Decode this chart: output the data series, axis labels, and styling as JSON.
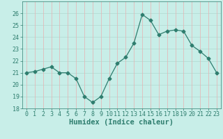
{
  "x": [
    0,
    1,
    2,
    3,
    4,
    5,
    6,
    7,
    8,
    9,
    10,
    11,
    12,
    13,
    14,
    15,
    16,
    17,
    18,
    19,
    20,
    21,
    22,
    23
  ],
  "y": [
    21.0,
    21.1,
    21.3,
    21.5,
    21.0,
    21.0,
    20.5,
    19.0,
    18.5,
    19.0,
    20.5,
    21.8,
    22.3,
    23.5,
    25.9,
    25.4,
    24.2,
    24.5,
    24.6,
    24.5,
    23.3,
    22.8,
    22.2,
    21.0
  ],
  "line_color": "#2e7d6e",
  "marker": "D",
  "marker_size": 2.5,
  "bg_color": "#c8eee8",
  "grid_color_h": "#b0d8d0",
  "grid_color_v": "#e8b0b0",
  "xlabel": "Humidex (Indice chaleur)",
  "ylim": [
    18,
    27
  ],
  "yticks": [
    18,
    19,
    20,
    21,
    22,
    23,
    24,
    25,
    26
  ],
  "xticks": [
    0,
    1,
    2,
    3,
    4,
    5,
    6,
    7,
    8,
    9,
    10,
    11,
    12,
    13,
    14,
    15,
    16,
    17,
    18,
    19,
    20,
    21,
    22,
    23
  ],
  "tick_label_fontsize": 6.0,
  "xlabel_fontsize": 7.5
}
